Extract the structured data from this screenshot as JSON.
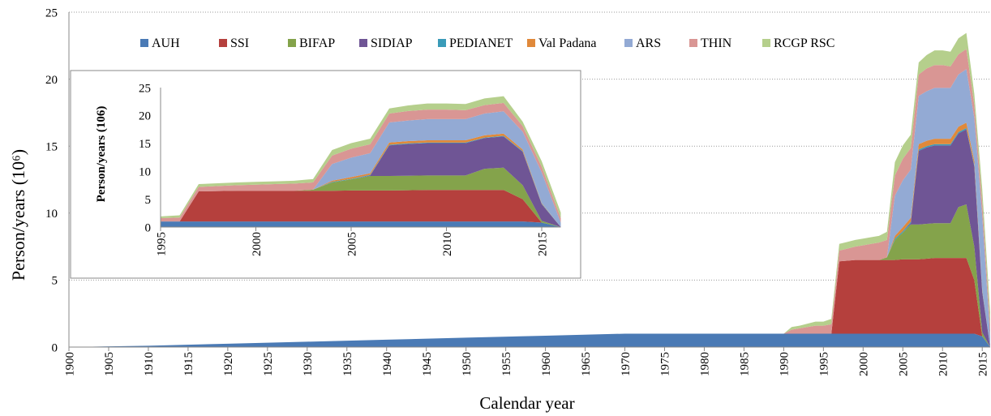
{
  "chart_data": [
    {
      "type": "area",
      "stacked": true,
      "xlabel": "Calendar year",
      "ylabel": "Person/years (10⁶)",
      "x": [
        1900,
        1910,
        1920,
        1930,
        1940,
        1950,
        1960,
        1970,
        1980,
        1990,
        1991,
        1992,
        1993,
        1994,
        1995,
        1996,
        1997,
        1998,
        1999,
        2000,
        2001,
        2002,
        2003,
        2004,
        2005,
        2006,
        2007,
        2008,
        2009,
        2010,
        2011,
        2012,
        2013,
        2014,
        2015,
        2016
      ],
      "series": [
        {
          "name": "AUH",
          "color": "#4a7ab5",
          "values": [
            0,
            0.1,
            0.25,
            0.4,
            0.55,
            0.7,
            0.85,
            1,
            1,
            1,
            1,
            1,
            1,
            1,
            1,
            1,
            1,
            1,
            1,
            1,
            1,
            1,
            1,
            1,
            1,
            1,
            1,
            1,
            1,
            1,
            1,
            1,
            1,
            1,
            0.8,
            0
          ]
        },
        {
          "name": "SSI",
          "color": "#b5403d",
          "values": [
            0,
            0,
            0,
            0,
            0,
            0,
            0,
            0,
            0,
            0,
            0,
            0,
            0,
            0,
            0,
            0,
            5.4,
            5.45,
            5.5,
            5.5,
            5.5,
            5.5,
            5.5,
            5.5,
            5.55,
            5.55,
            5.55,
            5.6,
            5.65,
            5.65,
            5.65,
            5.65,
            5.65,
            4.0,
            0,
            0
          ]
        },
        {
          "name": "BIFAP",
          "color": "#84a34b",
          "values": [
            0,
            0,
            0,
            0,
            0,
            0,
            0,
            0,
            0,
            0,
            0,
            0,
            0,
            0,
            0,
            0,
            0,
            0,
            0,
            0,
            0,
            0,
            0.2,
            1.5,
            2.0,
            2.6,
            2.6,
            2.6,
            2.6,
            2.6,
            2.6,
            3.8,
            4.0,
            2.5,
            0.3,
            0
          ]
        },
        {
          "name": "SIDIAP",
          "color": "#6f5595",
          "values": [
            0,
            0,
            0,
            0,
            0,
            0,
            0,
            0,
            0,
            0,
            0,
            0,
            0,
            0,
            0,
            0,
            0,
            0,
            0,
            0,
            0,
            0,
            0,
            0,
            0,
            0.1,
            5.5,
            5.7,
            5.8,
            5.8,
            5.8,
            5.5,
            5.6,
            6.0,
            3.0,
            0
          ]
        },
        {
          "name": "PEDIANET",
          "color": "#3a9bb8",
          "values": [
            0,
            0,
            0,
            0,
            0,
            0,
            0,
            0,
            0,
            0,
            0,
            0,
            0,
            0,
            0,
            0,
            0,
            0,
            0,
            0,
            0,
            0,
            0,
            0.1,
            0.1,
            0.1,
            0.1,
            0.1,
            0.1,
            0.1,
            0.1,
            0.1,
            0.1,
            0.1,
            0.1,
            0
          ]
        },
        {
          "name": "Val Padana",
          "color": "#e0893a",
          "values": [
            0,
            0,
            0,
            0,
            0,
            0,
            0,
            0,
            0,
            0,
            0,
            0,
            0,
            0,
            0,
            0,
            0,
            0,
            0,
            0,
            0,
            0,
            0,
            0.2,
            0.3,
            0.3,
            0.4,
            0.4,
            0.4,
            0.4,
            0.4,
            0.4,
            0.4,
            0.3,
            0.1,
            0
          ]
        },
        {
          "name": "ARS",
          "color": "#93aad4",
          "values": [
            0,
            0,
            0,
            0,
            0,
            0,
            0,
            0,
            0,
            0,
            0,
            0,
            0,
            0,
            0,
            0,
            0,
            0,
            0,
            0,
            0,
            0,
            0,
            3.0,
            3.5,
            3.6,
            3.6,
            3.7,
            3.8,
            3.8,
            3.8,
            3.9,
            4.0,
            3.2,
            5.5,
            0.8
          ]
        },
        {
          "name": "THIN",
          "color": "#d99694",
          "values": [
            0,
            0,
            0,
            0,
            0,
            0,
            0,
            0,
            0,
            0,
            0.3,
            0.4,
            0.5,
            0.6,
            0.6,
            0.7,
            0.8,
            0.9,
            1.0,
            1.1,
            1.2,
            1.3,
            1.3,
            1.5,
            1.6,
            1.6,
            1.6,
            1.7,
            1.7,
            1.7,
            1.6,
            1.5,
            1.5,
            1.0,
            1.0,
            0.8
          ]
        },
        {
          "name": "RCGP RSC",
          "color": "#b5cf8c",
          "values": [
            0,
            0,
            0,
            0,
            0,
            0,
            0,
            0,
            0,
            0,
            0.2,
            0.2,
            0.25,
            0.3,
            0.3,
            0.4,
            0.5,
            0.5,
            0.5,
            0.5,
            0.5,
            0.5,
            0.6,
            1.0,
            1.0,
            1.0,
            0.9,
            1.0,
            1.1,
            1.1,
            1.1,
            1.2,
            1.2,
            0.8,
            1.0,
            1.0
          ]
        }
      ],
      "xlim": [
        1900,
        2016
      ],
      "ylim": [
        0,
        25
      ],
      "xticks": [
        1900,
        1905,
        1910,
        1915,
        1920,
        1925,
        1930,
        1935,
        1940,
        1945,
        1950,
        1955,
        1960,
        1965,
        1970,
        1975,
        1980,
        1985,
        1990,
        1995,
        2000,
        2005,
        2010,
        2015
      ],
      "yticks": [
        0,
        5,
        10,
        15,
        20,
        25
      ],
      "grid": true,
      "legend": "top"
    },
    {
      "type": "area",
      "stacked": true,
      "ylabel": "Person/years (106)",
      "xlim": [
        1995,
        2016
      ],
      "ylim": [
        0,
        25
      ],
      "xticks": [
        1995,
        2000,
        2005,
        2010,
        2015
      ],
      "yticks": [
        0,
        5,
        10,
        15,
        20,
        25
      ]
    }
  ]
}
